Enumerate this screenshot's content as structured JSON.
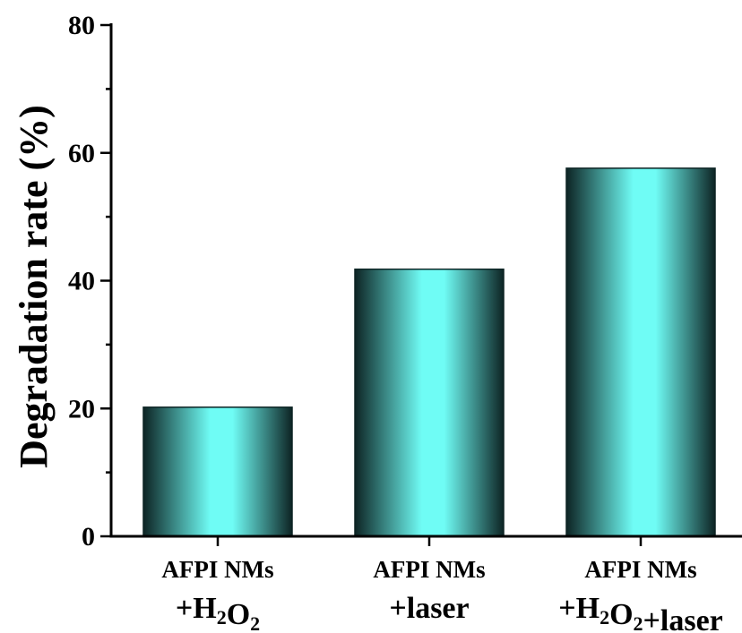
{
  "chart_data": {
    "type": "bar",
    "title": "",
    "xlabel": "",
    "ylabel": "Degradation rate (%)",
    "ylim": [
      0,
      80
    ],
    "yticks": [
      0,
      20,
      40,
      60,
      80
    ],
    "grid": false,
    "categories": [
      {
        "line1": "AFPI NMs",
        "line2_parts": [
          {
            "t": "+H"
          },
          {
            "t": "2",
            "sub": true
          },
          {
            "t": "O"
          },
          {
            "t": "2",
            "sub": true
          }
        ]
      },
      {
        "line1": "AFPI NMs",
        "line2_parts": [
          {
            "t": "+laser"
          }
        ]
      },
      {
        "line1": "AFPI NMs",
        "line2_parts": [
          {
            "t": "+H"
          },
          {
            "t": "2",
            "sub": true
          },
          {
            "t": "O"
          },
          {
            "t": "2",
            "sub": true
          },
          {
            "t": "+laser"
          }
        ]
      }
    ],
    "values": [
      20.2,
      41.8,
      57.6
    ],
    "colors": {
      "bar_edge": "#0d2424",
      "bar_center": "#6ffcf5",
      "axis": "#000000"
    }
  }
}
